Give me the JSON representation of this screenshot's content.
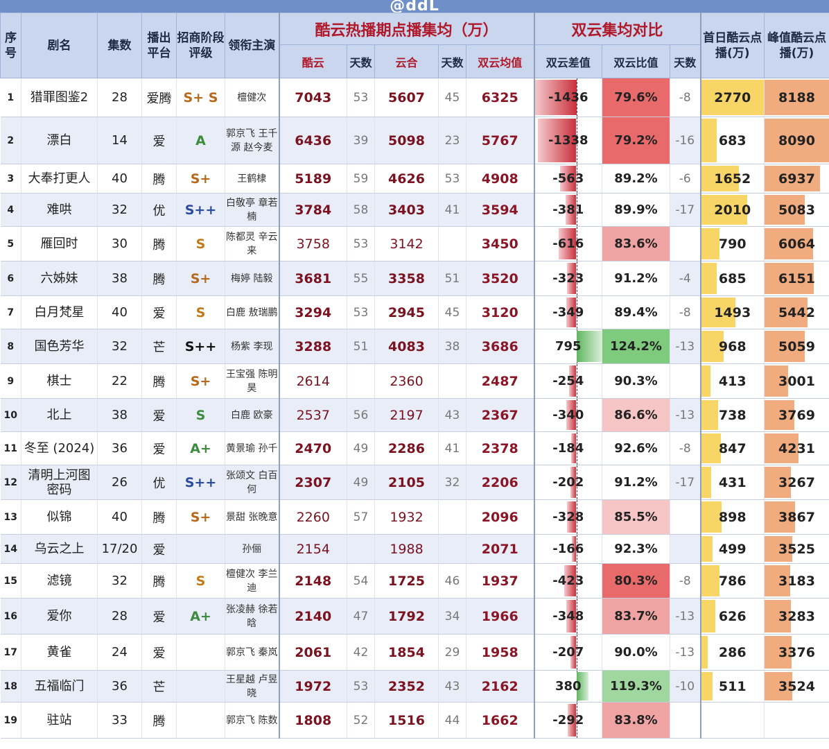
{
  "watermark": "@ddL",
  "colors": {
    "header_bg": "#c9d6ee",
    "title_red": "#b0192a",
    "diff_negative": "#c9303c",
    "diff_positive": "#5fb65f",
    "ratio_low": "#e86a6a",
    "ratio_high": "#7ecb7e",
    "first_day_bar": "#f8d567",
    "peak_bar": "#f0ac7f"
  },
  "header": {
    "idx": "序号",
    "name": "剧名",
    "episodes": "集数",
    "platform": "播出平台",
    "grade": "招商阶段评级",
    "lead": "领衔主演",
    "group_avg": "酷云热播期点播集均（万）",
    "ku": "酷云",
    "ku_days": "天数",
    "yun": "云合",
    "yun_days": "天数",
    "avg": "双云均值",
    "group_compare": "双云集均对比",
    "diff": "双云差值",
    "ratio": "双云比值",
    "cmp_days": "天数",
    "first_day": "首日酷云点播(万)",
    "peak": "峰值酷云点播(万)"
  },
  "rows": [
    {
      "idx": "1",
      "name": "猎罪图鉴2",
      "episodes": "28",
      "platform": "爱腾",
      "grade": "S+ S",
      "grade_class": "g-Splus",
      "lead": "檀健次",
      "ku": "7043",
      "ku_days": "53",
      "yun": "5607",
      "yun_days": "45",
      "avg": "6325",
      "diff": "-1436",
      "diff_value": -1436,
      "ratio": "79.6%",
      "ratio_value": 79.6,
      "cmp_days": "-8",
      "first_day": "2770",
      "first_value": 2770,
      "peak": "8188",
      "peak_value": 8188,
      "bold_values": true
    },
    {
      "idx": "2",
      "name": "漂白",
      "episodes": "14",
      "platform": "爱",
      "grade": "A",
      "grade_class": "g-A",
      "lead": "郭京飞 王千源 赵今麦",
      "ku": "6436",
      "ku_days": "39",
      "yun": "5098",
      "yun_days": "23",
      "avg": "5767",
      "diff": "-1338",
      "diff_value": -1338,
      "ratio": "79.2%",
      "ratio_value": 79.2,
      "cmp_days": "-16",
      "first_day": "683",
      "first_value": 683,
      "peak": "8090",
      "peak_value": 8090,
      "bold_values": true
    },
    {
      "idx": "3",
      "name": "大奉打更人",
      "episodes": "40",
      "platform": "腾",
      "grade": "S+",
      "grade_class": "g-Splus",
      "lead": "王鹤棣",
      "ku": "5189",
      "ku_days": "59",
      "yun": "4626",
      "yun_days": "53",
      "avg": "4908",
      "diff": "-563",
      "diff_value": -563,
      "ratio": "89.2%",
      "ratio_value": 89.2,
      "cmp_days": "-6",
      "first_day": "1652",
      "first_value": 1652,
      "peak": "6937",
      "peak_value": 6937,
      "bold_values": true
    },
    {
      "idx": "4",
      "name": "难哄",
      "episodes": "32",
      "platform": "优",
      "grade": "S++",
      "grade_class": "g-Spp",
      "lead": "白敬亭 章若楠",
      "ku": "3784",
      "ku_days": "58",
      "yun": "3403",
      "yun_days": "41",
      "avg": "3594",
      "diff": "-381",
      "diff_value": -381,
      "ratio": "89.9%",
      "ratio_value": 89.9,
      "cmp_days": "-17",
      "first_day": "2010",
      "first_value": 2010,
      "peak": "5083",
      "peak_value": 5083,
      "bold_values": true
    },
    {
      "idx": "5",
      "name": "雁回时",
      "episodes": "30",
      "platform": "腾",
      "grade": "S",
      "grade_class": "g-S",
      "lead": "陈都灵 辛云来",
      "ku": "3758",
      "ku_days": "53",
      "yun": "3142",
      "yun_days": "",
      "avg": "3450",
      "diff": "-616",
      "diff_value": -616,
      "ratio": "83.6%",
      "ratio_value": 83.6,
      "cmp_days": "",
      "first_day": "790",
      "first_value": 790,
      "peak": "6064",
      "peak_value": 6064,
      "bold_values": false
    },
    {
      "idx": "6",
      "name": "六姊妹",
      "episodes": "38",
      "platform": "腾",
      "grade": "S+",
      "grade_class": "g-Splus",
      "lead": "梅婷 陆毅",
      "ku": "3681",
      "ku_days": "55",
      "yun": "3358",
      "yun_days": "51",
      "avg": "3520",
      "diff": "-323",
      "diff_value": -323,
      "ratio": "91.2%",
      "ratio_value": 91.2,
      "cmp_days": "-4",
      "first_day": "685",
      "first_value": 685,
      "peak": "6151",
      "peak_value": 6151,
      "bold_values": true
    },
    {
      "idx": "7",
      "name": "白月梵星",
      "episodes": "40",
      "platform": "爱",
      "grade": "S",
      "grade_class": "g-S",
      "lead": "白鹿 敖瑞鹏",
      "ku": "3294",
      "ku_days": "53",
      "yun": "2945",
      "yun_days": "45",
      "avg": "3120",
      "diff": "-349",
      "diff_value": -349,
      "ratio": "89.4%",
      "ratio_value": 89.4,
      "cmp_days": "-8",
      "first_day": "1493",
      "first_value": 1493,
      "peak": "5442",
      "peak_value": 5442,
      "bold_values": true
    },
    {
      "idx": "8",
      "name": "国色芳华",
      "episodes": "32",
      "platform": "芒",
      "grade": "S++",
      "grade_class": "g-Sppk",
      "lead": "杨紫 李现",
      "ku": "3288",
      "ku_days": "51",
      "yun": "4083",
      "yun_days": "38",
      "avg": "3686",
      "diff": "795",
      "diff_value": 795,
      "ratio": "124.2%",
      "ratio_value": 124.2,
      "cmp_days": "-13",
      "first_day": "968",
      "first_value": 968,
      "peak": "5059",
      "peak_value": 5059,
      "bold_values": true
    },
    {
      "idx": "9",
      "name": "棋士",
      "episodes": "22",
      "platform": "腾",
      "grade": "S+",
      "grade_class": "g-Splus",
      "lead": "王宝强 陈明昊",
      "ku": "2614",
      "ku_days": "",
      "yun": "2360",
      "yun_days": "",
      "avg": "2487",
      "diff": "-254",
      "diff_value": -254,
      "ratio": "90.3%",
      "ratio_value": 90.3,
      "cmp_days": "",
      "first_day": "413",
      "first_value": 413,
      "peak": "3001",
      "peak_value": 3001,
      "bold_values": false
    },
    {
      "idx": "10",
      "name": "北上",
      "episodes": "38",
      "platform": "爱",
      "grade": "S",
      "grade_class": "g-A",
      "lead": "白鹿 欧豪",
      "ku": "2537",
      "ku_days": "56",
      "yun": "2197",
      "yun_days": "43",
      "avg": "2367",
      "diff": "-340",
      "diff_value": -340,
      "ratio": "86.6%",
      "ratio_value": 86.6,
      "cmp_days": "-13",
      "first_day": "738",
      "first_value": 738,
      "peak": "3769",
      "peak_value": 3769,
      "bold_values": false
    },
    {
      "idx": "11",
      "name": "冬至 (2024)",
      "episodes": "36",
      "platform": "爱",
      "grade": "A+",
      "grade_class": "g-Aplus",
      "lead": "黄景瑜 孙千",
      "ku": "2470",
      "ku_days": "49",
      "yun": "2286",
      "yun_days": "41",
      "avg": "2378",
      "diff": "-184",
      "diff_value": -184,
      "ratio": "92.6%",
      "ratio_value": 92.6,
      "cmp_days": "-8",
      "first_day": "847",
      "first_value": 847,
      "peak": "4231",
      "peak_value": 4231,
      "bold_values": true
    },
    {
      "idx": "12",
      "name": "清明上河图 密码",
      "episodes": "26",
      "platform": "优",
      "grade": "S++",
      "grade_class": "g-Spp",
      "lead": "张颂文 白百何",
      "ku": "2307",
      "ku_days": "49",
      "yun": "2105",
      "yun_days": "32",
      "avg": "2206",
      "diff": "-202",
      "diff_value": -202,
      "ratio": "91.2%",
      "ratio_value": 91.2,
      "cmp_days": "-17",
      "first_day": "431",
      "first_value": 431,
      "peak": "3267",
      "peak_value": 3267,
      "bold_values": true
    },
    {
      "idx": "13",
      "name": "似锦",
      "episodes": "40",
      "platform": "腾",
      "grade": "S+",
      "grade_class": "g-Splus",
      "lead": "景甜 张晚意",
      "ku": "2260",
      "ku_days": "57",
      "yun": "1932",
      "yun_days": "",
      "avg": "2096",
      "diff": "-328",
      "diff_value": -328,
      "ratio": "85.5%",
      "ratio_value": 85.5,
      "cmp_days": "",
      "first_day": "898",
      "first_value": 898,
      "peak": "3867",
      "peak_value": 3867,
      "bold_values": false
    },
    {
      "idx": "14",
      "name": "乌云之上",
      "episodes": "17/20",
      "platform": "爱",
      "grade": "",
      "grade_class": "g-S",
      "lead": "孙俪",
      "ku": "2154",
      "ku_days": "",
      "yun": "1988",
      "yun_days": "",
      "avg": "2071",
      "diff": "-166",
      "diff_value": -166,
      "ratio": "92.3%",
      "ratio_value": 92.3,
      "cmp_days": "",
      "first_day": "499",
      "first_value": 499,
      "peak": "3525",
      "peak_value": 3525,
      "bold_values": false
    },
    {
      "idx": "15",
      "name": "滤镜",
      "episodes": "32",
      "platform": "腾",
      "grade": "S",
      "grade_class": "g-S",
      "lead": "檀健次 李兰迪",
      "ku": "2148",
      "ku_days": "54",
      "yun": "1725",
      "yun_days": "46",
      "avg": "1937",
      "diff": "-423",
      "diff_value": -423,
      "ratio": "80.3%",
      "ratio_value": 80.3,
      "cmp_days": "-8",
      "first_day": "786",
      "first_value": 786,
      "peak": "3183",
      "peak_value": 3183,
      "bold_values": true
    },
    {
      "idx": "16",
      "name": "爱你",
      "episodes": "28",
      "platform": "爱",
      "grade": "A+",
      "grade_class": "g-Aplus",
      "lead": "张凌赫 徐若晗",
      "ku": "2140",
      "ku_days": "47",
      "yun": "1792",
      "yun_days": "34",
      "avg": "1966",
      "diff": "-348",
      "diff_value": -348,
      "ratio": "83.7%",
      "ratio_value": 83.7,
      "cmp_days": "-13",
      "first_day": "626",
      "first_value": 626,
      "peak": "3283",
      "peak_value": 3283,
      "bold_values": true
    },
    {
      "idx": "17",
      "name": "黄雀",
      "episodes": "24",
      "platform": "爱",
      "grade": "",
      "grade_class": "g-S",
      "lead": "郭京飞 秦岚",
      "ku": "2061",
      "ku_days": "42",
      "yun": "1854",
      "yun_days": "29",
      "avg": "1958",
      "diff": "-207",
      "diff_value": -207,
      "ratio": "90.0%",
      "ratio_value": 90.0,
      "cmp_days": "-13",
      "first_day": "286",
      "first_value": 286,
      "peak": "3376",
      "peak_value": 3376,
      "bold_values": true
    },
    {
      "idx": "18",
      "name": "五福临门",
      "episodes": "36",
      "platform": "芒",
      "grade": "",
      "grade_class": "g-S",
      "lead": "王星越 卢昱晓",
      "ku": "1972",
      "ku_days": "53",
      "yun": "2352",
      "yun_days": "43",
      "avg": "2162",
      "diff": "380",
      "diff_value": 380,
      "ratio": "119.3%",
      "ratio_value": 119.3,
      "cmp_days": "-10",
      "first_day": "511",
      "first_value": 511,
      "peak": "3524",
      "peak_value": 3524,
      "bold_values": true
    },
    {
      "idx": "19",
      "name": "驻站",
      "episodes": "33",
      "platform": "腾",
      "grade": "",
      "grade_class": "g-S",
      "lead": "郭京飞 陈数",
      "ku": "1808",
      "ku_days": "52",
      "yun": "1516",
      "yun_days": "44",
      "avg": "1662",
      "diff": "-292",
      "diff_value": -292,
      "ratio": "83.8%",
      "ratio_value": 83.8,
      "cmp_days": "",
      "first_day": "",
      "first_value": 0,
      "peak": "",
      "peak_value": 0,
      "bold_values": true
    }
  ]
}
